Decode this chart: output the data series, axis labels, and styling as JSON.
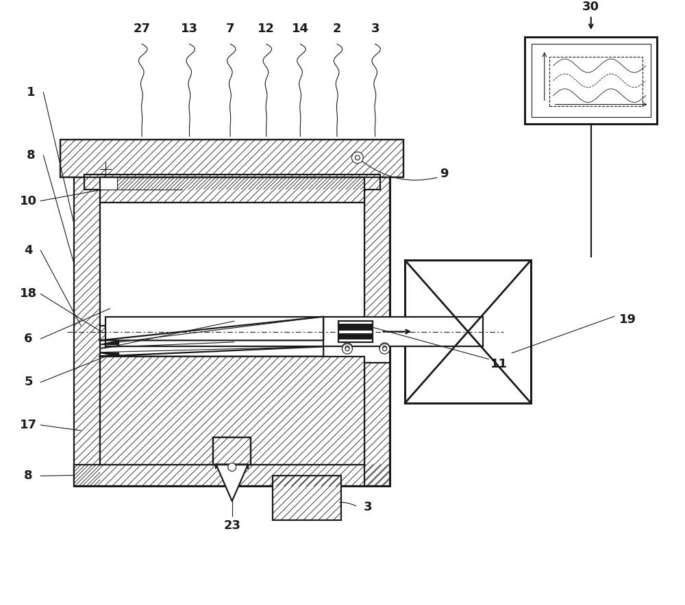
{
  "bg": "white",
  "lc": "#1a1a1a",
  "lw_main": 1.6,
  "lw_thin": 0.8,
  "lw_thick": 2.2,
  "fs": 13,
  "hsp": 0.11
}
